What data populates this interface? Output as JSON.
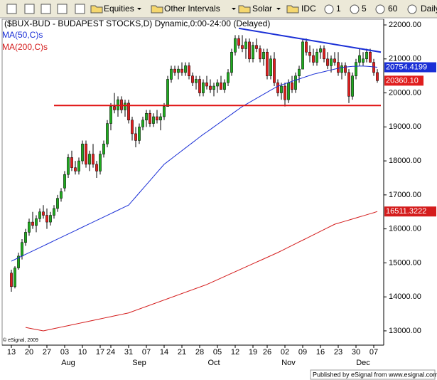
{
  "toolbar": {
    "items": [
      "Equities",
      "Other Intervals",
      "Solar",
      "IDC",
      "1",
      "5",
      "60",
      "Daily"
    ]
  },
  "footer": "Published by eSignal from www.esignal.com",
  "chart_data": {
    "type": "candlestick",
    "title": "($BUX-BUD - BUDAPEST STOCKS,D) Dynamic,0:00-24:00 (Delayed)",
    "copyright": "© eSignal, 2009",
    "categories": [
      "13",
      null,
      null,
      null,
      null,
      "20",
      null,
      null,
      null,
      null,
      "27",
      null,
      null,
      null,
      null,
      "03",
      null,
      null,
      null,
      null,
      "10",
      null,
      null,
      null,
      null,
      "17",
      null,
      null,
      "24",
      null,
      null,
      null,
      null,
      "31",
      null,
      null,
      null,
      null,
      "07",
      null,
      null,
      null,
      null,
      "14",
      null,
      null,
      null,
      null,
      "21",
      null,
      null,
      null,
      null,
      "28",
      null,
      null,
      null,
      null,
      "05",
      null,
      null,
      null,
      null,
      "12",
      null,
      null,
      null,
      null,
      "19",
      null,
      null,
      null,
      "26",
      null,
      null,
      null,
      null,
      "02",
      null,
      null,
      null,
      null,
      "09",
      null,
      null,
      null,
      null,
      "16",
      null,
      null,
      null,
      null,
      "23",
      null,
      null,
      null,
      null,
      "30",
      null,
      null,
      null,
      null,
      "07",
      null
    ],
    "months": [
      {
        "label": "Aug",
        "index": 16
      },
      {
        "label": "Sep",
        "index": 36
      },
      {
        "label": "Oct",
        "index": 57
      },
      {
        "label": "Nov",
        "index": 78
      },
      {
        "label": "Dec",
        "index": 99
      }
    ],
    "open": [
      14700,
      14300,
      14850,
      15200,
      15600,
      15900,
      16200,
      16100,
      16300,
      16500,
      16400,
      16200,
      16400,
      16600,
      16900,
      17200,
      17600,
      18100,
      17800,
      17700,
      18000,
      18500,
      17900,
      18200,
      17900,
      17700,
      18200,
      18500,
      19100,
      19600,
      19500,
      19800,
      19500,
      19700,
      19200,
      18800,
      18600,
      19000,
      19200,
      19400,
      19100,
      19300,
      19200,
      19300,
      19600,
      20400,
      20700,
      20600,
      20700,
      20600,
      20800,
      20500,
      20300,
      20400,
      20000,
      20300,
      20200,
      20100,
      20200,
      20300,
      20100,
      20300,
      20600,
      21200,
      21600,
      21400,
      21300,
      21500,
      21000,
      21400,
      21300,
      21000,
      21200,
      20500,
      21000,
      20300,
      20000,
      20200,
      19800,
      20300,
      20100,
      20500,
      20700,
      21500,
      21200,
      21100,
      20900,
      21200,
      21300,
      21000,
      20800,
      21000,
      20900,
      20600,
      20800,
      20600,
      19900,
      20500,
      20900,
      20900,
      21000,
      21200,
      20900,
      20600
    ],
    "high": [
      14800,
      14900,
      15300,
      15700,
      16000,
      16300,
      16500,
      16400,
      16600,
      16700,
      16600,
      16500,
      16700,
      17000,
      17200,
      17700,
      18200,
      18300,
      18000,
      18100,
      18600,
      18600,
      18300,
      18500,
      18000,
      18300,
      18600,
      19200,
      19700,
      20000,
      19900,
      19900,
      19800,
      19800,
      19300,
      19000,
      19100,
      19300,
      19500,
      19500,
      19400,
      19500,
      19400,
      19700,
      20500,
      20800,
      20800,
      20800,
      20900,
      20900,
      20900,
      20600,
      20500,
      20500,
      20400,
      20500,
      20400,
      20300,
      20400,
      20500,
      20400,
      20700,
      21300,
      21700,
      21700,
      21700,
      21600,
      21600,
      21500,
      21600,
      21400,
      21300,
      21300,
      21100,
      21200,
      20400,
      20300,
      20300,
      20400,
      20500,
      20600,
      20800,
      21600,
      21600,
      21400,
      21300,
      21300,
      21400,
      21400,
      21200,
      21100,
      21200,
      21200,
      20900,
      20900,
      20700,
      20600,
      21000,
      21300,
      21200,
      21300,
      21300,
      21000,
      20700
    ],
    "low": [
      14150,
      14250,
      14800,
      15100,
      15500,
      15800,
      16000,
      15900,
      16200,
      16300,
      16000,
      16100,
      16300,
      16500,
      16800,
      17100,
      17500,
      17700,
      17600,
      17600,
      17900,
      17800,
      17700,
      17800,
      17500,
      17600,
      18100,
      18400,
      18900,
      19400,
      19300,
      19400,
      19300,
      19100,
      18600,
      18400,
      18500,
      18900,
      19000,
      19000,
      19000,
      19100,
      18900,
      19200,
      19600,
      20300,
      20500,
      20400,
      20500,
      20500,
      20400,
      20200,
      20100,
      19900,
      19900,
      20100,
      20000,
      19900,
      20000,
      20100,
      20000,
      20200,
      20500,
      21100,
      21300,
      21200,
      21000,
      20900,
      20900,
      21200,
      20900,
      20800,
      20400,
      20400,
      20200,
      19900,
      19800,
      19600,
      19700,
      20000,
      20000,
      20300,
      20700,
      21100,
      20900,
      20800,
      20800,
      21000,
      20900,
      20700,
      20600,
      20800,
      20500,
      20400,
      20500,
      19700,
      19800,
      20400,
      20800,
      20800,
      20900,
      20900,
      20500,
      20300
    ],
    "close": [
      14300,
      14850,
      15200,
      15600,
      15900,
      16200,
      16100,
      16300,
      16500,
      16400,
      16200,
      16400,
      16600,
      16900,
      17100,
      17600,
      18100,
      17800,
      17700,
      18000,
      18500,
      17900,
      18200,
      17900,
      17700,
      18200,
      18500,
      19100,
      19600,
      19500,
      19800,
      19500,
      19700,
      19200,
      18800,
      18600,
      19000,
      19200,
      19400,
      19100,
      19300,
      19200,
      19300,
      19600,
      20400,
      20700,
      20600,
      20700,
      20600,
      20800,
      20500,
      20300,
      20400,
      20000,
      20300,
      20200,
      20100,
      20200,
      20300,
      20100,
      20300,
      20600,
      21200,
      21600,
      21400,
      21300,
      21500,
      21000,
      21400,
      21300,
      21000,
      21200,
      20500,
      21000,
      20300,
      20000,
      20200,
      19800,
      20300,
      20100,
      20500,
      20700,
      21500,
      21200,
      21100,
      20900,
      21200,
      21300,
      21000,
      20800,
      21000,
      20900,
      20600,
      20800,
      20600,
      19900,
      20500,
      20900,
      21100,
      21000,
      21200,
      20900,
      20600,
      20360.1
    ],
    "last_price_label": "20360.10",
    "up_color": "#1faa1f",
    "down_color": "#e01e1e",
    "series": [
      {
        "name": "MA(50,C)s",
        "color": "#1a2fd6",
        "values": [
          15050,
          15100,
          15150,
          15200,
          15250,
          15300,
          15350,
          15400,
          15450,
          15500,
          15550,
          15600,
          15650,
          15700,
          15750,
          15800,
          15850,
          15900,
          15950,
          16000,
          16050,
          16100,
          16150,
          16200,
          16250,
          16300,
          16350,
          16400,
          16450,
          16500,
          16550,
          16600,
          16650,
          16700,
          16820,
          16940,
          17060,
          17180,
          17300,
          17420,
          17540,
          17660,
          17780,
          17900,
          17980,
          18060,
          18140,
          18220,
          18300,
          18380,
          18460,
          18540,
          18620,
          18700,
          18780,
          18850,
          18925,
          19000,
          19075,
          19150,
          19225,
          19300,
          19375,
          19450,
          19525,
          19600,
          19660,
          19720,
          19780,
          19840,
          19900,
          19960,
          20020,
          20080,
          20140,
          20200,
          20235,
          20270,
          20305,
          20340,
          20375,
          20410,
          20445,
          20480,
          20515,
          20550,
          20575,
          20600,
          20625,
          20650,
          20675,
          20700,
          20725,
          20750,
          20760,
          20770,
          20780,
          20785,
          20790,
          20790,
          20785,
          20775,
          20765,
          20754.4199
        ]
      },
      {
        "name": "MA(200,C)s",
        "color": "#d41c1c",
        "values": [
          null,
          null,
          null,
          null,
          13100,
          13080,
          13060,
          13040,
          13020,
          13000,
          13022,
          13044,
          13066,
          13088,
          13110,
          13132,
          13154,
          13176,
          13198,
          13220,
          13242,
          13264,
          13286,
          13308,
          13330,
          13352,
          13374,
          13396,
          13418,
          13440,
          13462,
          13484,
          13506,
          13528,
          13566,
          13604,
          13642,
          13680,
          13718,
          13756,
          13794,
          13832,
          13870,
          13908,
          13946,
          13984,
          14022,
          14060,
          14098,
          14136,
          14174,
          14212,
          14250,
          14288,
          14326,
          14364,
          14411,
          14458,
          14505,
          14552,
          14599,
          14646,
          14693,
          14740,
          14787,
          14834,
          14881,
          14928,
          14975,
          15022,
          15069,
          15116,
          15163,
          15210,
          15257,
          15304,
          15356,
          15408,
          15460,
          15512,
          15564,
          15616,
          15668,
          15720,
          15772,
          15824,
          15876,
          15928,
          15980,
          16032,
          16084,
          16136,
          16167,
          16198,
          16229,
          16260,
          16291,
          16322,
          16353,
          16384,
          16415,
          16446,
          16477,
          16511.3222
        ]
      }
    ],
    "lines": [
      {
        "color": "#e01010",
        "start": 12,
        "end": 104,
        "values": [
          19630,
          19630
        ]
      },
      {
        "color": "#1a2fd6",
        "start": 64,
        "end": 104,
        "values": [
          21900,
          21200
        ]
      }
    ],
    "ylim": [
      12580,
      22210
    ],
    "yticks": [
      {
        "value": 13000,
        "label": "13000.00"
      },
      {
        "value": 14000,
        "label": "14000.00"
      },
      {
        "value": 15000,
        "label": "15000.00"
      },
      {
        "value": 16000,
        "label": "16000.00"
      },
      {
        "value": 17000,
        "label": "17000.00"
      },
      {
        "value": 18000,
        "label": "18000.00"
      },
      {
        "value": 19000,
        "label": "19000.00"
      },
      {
        "value": 20000,
        "label": "20000.00"
      },
      {
        "value": 21000,
        "label": "21000.00"
      },
      {
        "value": 22000,
        "label": "22000.00"
      }
    ]
  }
}
